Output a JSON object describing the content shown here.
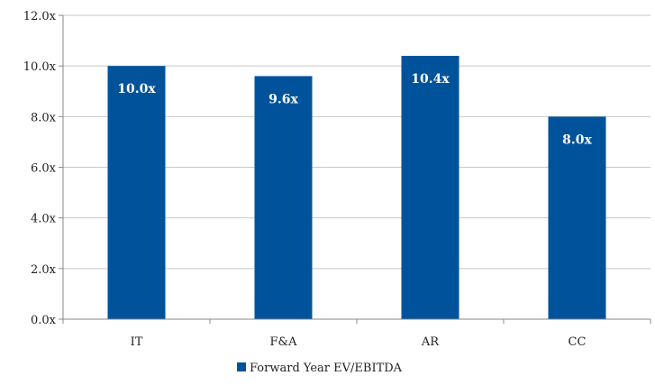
{
  "chart_data": {
    "type": "bar",
    "categories": [
      "IT",
      "F&A",
      "AR",
      "CC"
    ],
    "series": [
      {
        "name": "Forward Year EV/EBITDA",
        "values": [
          10.0,
          9.6,
          10.4,
          8.0
        ],
        "data_labels": [
          "10.0x",
          "9.6x",
          "10.4x",
          "8.0x"
        ],
        "color": "#00539b"
      }
    ],
    "ylim": [
      0,
      12
    ],
    "yticks": [
      0,
      2,
      4,
      6,
      8,
      10,
      12
    ],
    "ytick_labels": [
      "0.0x",
      "2.0x",
      "4.0x",
      "6.0x",
      "8.0x",
      "10.0x",
      "12.0x"
    ],
    "grid": true,
    "legend_position": "bottom"
  }
}
